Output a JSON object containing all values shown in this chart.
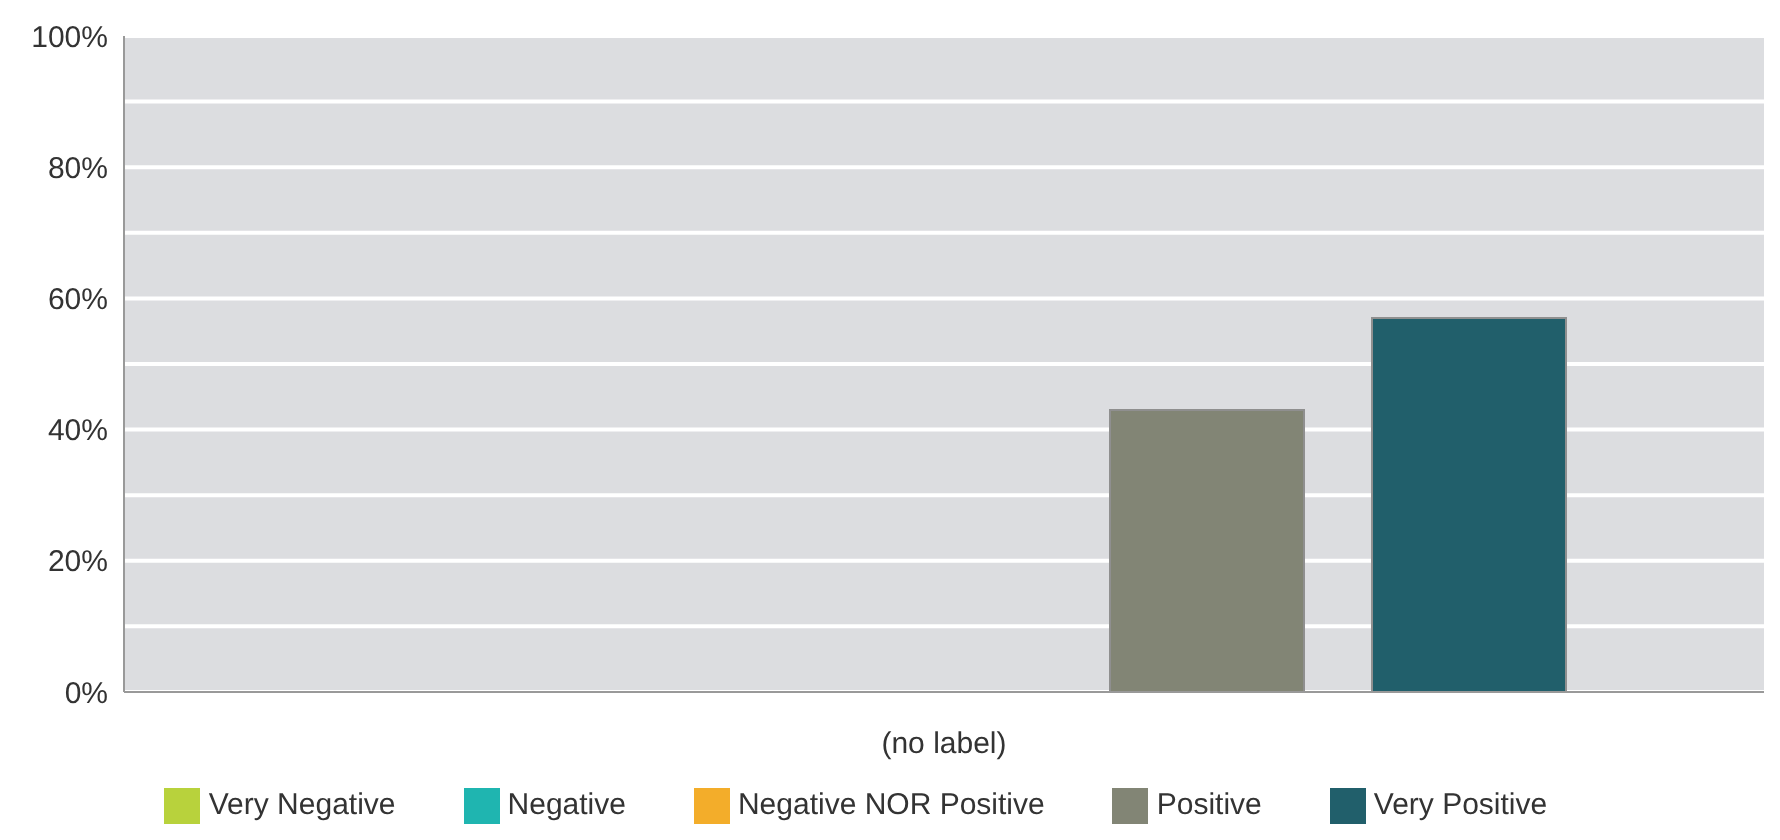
{
  "chart_data": {
    "type": "bar",
    "categories": [
      "(no label)"
    ],
    "series": [
      {
        "name": "Very Negative",
        "color": "#b8d23c",
        "values": [
          0
        ]
      },
      {
        "name": "Negative",
        "color": "#1fb5b0",
        "values": [
          0
        ]
      },
      {
        "name": "Negative NOR Positive",
        "color": "#f3ad2a",
        "values": [
          0
        ]
      },
      {
        "name": "Positive",
        "color": "#828575",
        "values": [
          43
        ]
      },
      {
        "name": "Very Positive",
        "color": "#215f6b",
        "values": [
          57
        ]
      }
    ],
    "ylim": [
      0,
      100
    ],
    "yticks": [
      {
        "value": 0,
        "label": "0%"
      },
      {
        "value": 10,
        "label": null
      },
      {
        "value": 20,
        "label": "20%"
      },
      {
        "value": 30,
        "label": null
      },
      {
        "value": 40,
        "label": "40%"
      },
      {
        "value": 50,
        "label": null
      },
      {
        "value": 60,
        "label": "60%"
      },
      {
        "value": 70,
        "label": null
      },
      {
        "value": 80,
        "label": "80%"
      },
      {
        "value": 90,
        "label": null
      },
      {
        "value": 100,
        "label": "100%"
      }
    ],
    "grid": "y",
    "legend": "bottom"
  }
}
